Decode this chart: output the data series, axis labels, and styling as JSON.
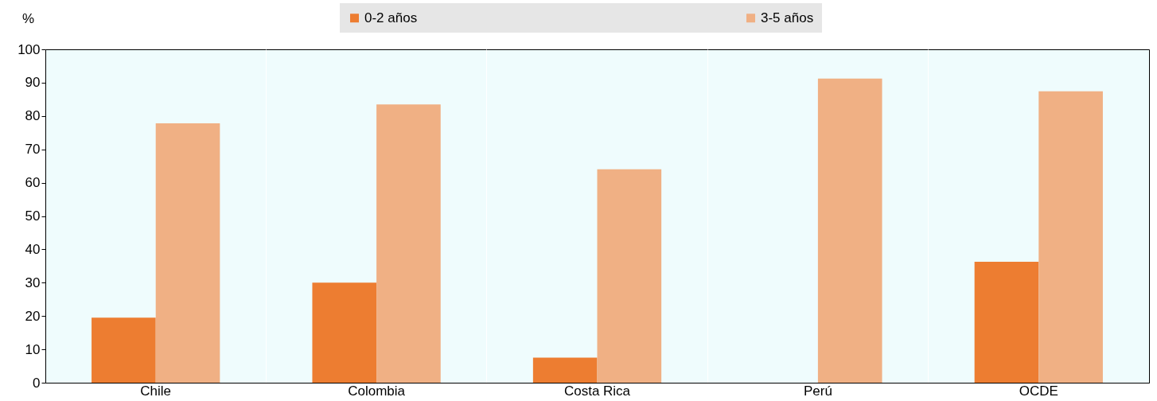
{
  "chart_data": {
    "type": "bar",
    "ylabel": "%",
    "categories": [
      "Chile",
      "Colombia",
      "Costa Rica",
      "Perú",
      "OCDE"
    ],
    "series": [
      {
        "name": "0-2 años",
        "color": "#ed7d31",
        "values": [
          19.5,
          30,
          7.5,
          null,
          36.3
        ]
      },
      {
        "name": "3-5 años",
        "color": "#f0b084",
        "values": [
          77.8,
          83.5,
          64,
          91.2,
          87.4
        ]
      }
    ],
    "ylim": [
      0,
      100
    ],
    "yticks": [
      0,
      10,
      20,
      30,
      40,
      50,
      60,
      70,
      80,
      90,
      100
    ],
    "grid": false,
    "legend": "top"
  }
}
